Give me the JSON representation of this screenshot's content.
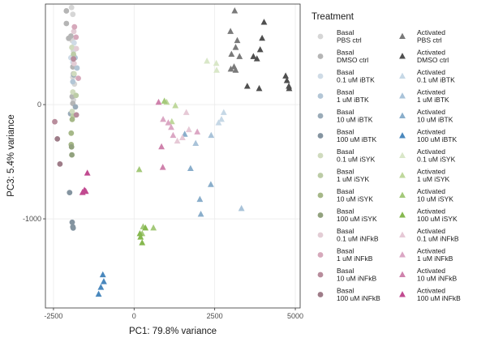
{
  "chart_data": {
    "type": "scatter",
    "xlabel": "PC1: 79.8% variance",
    "ylabel": "PC3: 5.4% variance",
    "xlim": [
      -2750,
      5150
    ],
    "ylim": [
      -1780,
      880
    ],
    "xticks": [
      -2500,
      0,
      2500,
      5000
    ],
    "xtick_labels": [
      "-2500",
      "0",
      "2500",
      "5000"
    ],
    "yticks": [
      -1000,
      0
    ],
    "ytick_labels": [
      "-1000",
      "0"
    ],
    "grid": true,
    "legend_title": "Treatment",
    "legend_position": "right",
    "series": [
      {
        "name": "Basal PBS ctrl",
        "label_lines": [
          "Basal",
          "PBS ctrl"
        ],
        "shape": "circle",
        "color": "#d6d6d6",
        "points": [
          [
            -1940,
            850
          ],
          [
            -1900,
            790
          ],
          [
            -1920,
            560
          ],
          [
            -1880,
            470
          ],
          [
            -1860,
            420
          ],
          [
            -1900,
            240
          ],
          [
            -1850,
            180
          ],
          [
            -1880,
            40
          ]
        ]
      },
      {
        "name": "Basal DMSO ctrl",
        "label_lines": [
          "Basal",
          "DMSO ctrl"
        ],
        "shape": "circle",
        "color": "#b5b5b5",
        "points": [
          [
            -2100,
            820
          ],
          [
            -2100,
            710
          ],
          [
            -2030,
            580
          ],
          [
            -1960,
            600
          ],
          [
            -1900,
            330
          ],
          [
            -1880,
            270
          ],
          [
            -1920,
            70
          ],
          [
            -1900,
            10
          ]
        ]
      },
      {
        "name": "Basal 0.1 uM iBTK",
        "label_lines": [
          "Basal",
          "0.1 uM iBTK"
        ],
        "shape": "circle",
        "color": "#cfdbe6",
        "points": [
          [
            -1860,
            540
          ],
          [
            -1820,
            490
          ],
          [
            -1960,
            410
          ],
          [
            -1900,
            370
          ]
        ]
      },
      {
        "name": "Basal 1 uM iBTK",
        "label_lines": [
          "Basal",
          "1 uM iBTK"
        ],
        "shape": "circle",
        "color": "#b3c6d6",
        "points": [
          [
            -1830,
            410
          ],
          [
            -1770,
            320
          ],
          [
            -1900,
            200
          ]
        ]
      },
      {
        "name": "Basal 10 uM iBTK",
        "label_lines": [
          "Basal",
          "10 uM iBTK"
        ],
        "shape": "circle",
        "color": "#9aabb8",
        "points": [
          [
            -1870,
            260
          ],
          [
            -1970,
            -80
          ],
          [
            -1820,
            -20
          ]
        ]
      },
      {
        "name": "Basal 100 uM iBTK",
        "label_lines": [
          "Basal",
          "100 uM iBTK"
        ],
        "shape": "circle",
        "color": "#8494a0",
        "points": [
          [
            -1920,
            -1030
          ],
          [
            -1900,
            -1070
          ],
          [
            -1890,
            -1080
          ],
          [
            -2000,
            -770
          ]
        ]
      },
      {
        "name": "Basal 0.1 uM iSYK",
        "label_lines": [
          "Basal",
          "0.1 uM iSYK"
        ],
        "shape": "circle",
        "color": "#d0dbbe",
        "points": [
          [
            -1930,
            500
          ],
          [
            -1860,
            270
          ],
          [
            -1900,
            110
          ],
          [
            -1920,
            -60
          ]
        ]
      },
      {
        "name": "Basal 1 uM iSYK",
        "label_lines": [
          "Basal",
          "1 uM iSYK"
        ],
        "shape": "circle",
        "color": "#bccca6",
        "points": [
          [
            -1880,
            440
          ],
          [
            -1800,
            80
          ],
          [
            -1890,
            -100
          ]
        ]
      },
      {
        "name": "Basal 10 uM iSYK",
        "label_lines": [
          "Basal",
          "10 uM iSYK"
        ],
        "shape": "circle",
        "color": "#a6b888",
        "points": [
          [
            -1920,
            -130
          ],
          [
            -1950,
            -250
          ],
          [
            -1950,
            -350
          ]
        ]
      },
      {
        "name": "Basal 100 uM iSYK",
        "label_lines": [
          "Basal",
          "100 uM iSYK"
        ],
        "shape": "circle",
        "color": "#92a27e",
        "points": [
          [
            -1940,
            -370
          ],
          [
            -1930,
            -440
          ]
        ]
      },
      {
        "name": "Basal 0.1 uM iNFkB",
        "label_lines": [
          "Basal",
          "0.1 uM iNFkB"
        ],
        "shape": "circle",
        "color": "#e3cdd5",
        "points": [
          [
            -1870,
            640
          ],
          [
            -1790,
            490
          ],
          [
            -1860,
            360
          ]
        ]
      },
      {
        "name": "Basal 1 uM iNFkB",
        "label_lines": [
          "Basal",
          "1 uM iNFkB"
        ],
        "shape": "circle",
        "color": "#d6a9bb",
        "points": [
          [
            -1850,
            680
          ],
          [
            -1800,
            590
          ],
          [
            -1730,
            230
          ]
        ]
      },
      {
        "name": "Basal 10 uM iNFkB",
        "label_lines": [
          "Basal",
          "10 uM iNFkB"
        ],
        "shape": "circle",
        "color": "#b88d9c",
        "points": [
          [
            -1880,
            400
          ],
          [
            -1790,
            -90
          ],
          [
            -2460,
            -150
          ]
        ]
      },
      {
        "name": "Basal 100 uM iNFkB",
        "label_lines": [
          "Basal",
          "100 uM iNFkB"
        ],
        "shape": "circle",
        "color": "#9e7c88",
        "points": [
          [
            -2380,
            -300
          ],
          [
            -2300,
            -520
          ]
        ]
      },
      {
        "name": "Activated PBS ctrl",
        "label_lines": [
          "Activated",
          "PBS ctrl"
        ],
        "shape": "triangle",
        "color": "#7a7a7a",
        "points": [
          [
            3120,
            820
          ],
          [
            2990,
            640
          ],
          [
            3200,
            560
          ],
          [
            3150,
            500
          ],
          [
            3020,
            440
          ],
          [
            3270,
            420
          ],
          [
            3100,
            330
          ],
          [
            3000,
            310
          ],
          [
            3150,
            300
          ]
        ]
      },
      {
        "name": "Activated DMSO ctrl",
        "label_lines": [
          "Activated",
          "DMSO ctrl"
        ],
        "shape": "triangle",
        "color": "#4f4f4f",
        "points": [
          [
            4030,
            720
          ],
          [
            3970,
            580
          ],
          [
            3910,
            480
          ],
          [
            3700,
            420
          ],
          [
            3810,
            400
          ],
          [
            4700,
            250
          ],
          [
            4740,
            210
          ],
          [
            4800,
            160
          ],
          [
            4810,
            140
          ],
          [
            3510,
            160
          ],
          [
            3880,
            140
          ]
        ]
      },
      {
        "name": "Activated 0.1 uM iBTK",
        "label_lines": [
          "Activated",
          "0.1 uM iBTK"
        ],
        "shape": "triangle",
        "color": "#c6d8e6",
        "points": [
          [
            2780,
            -70
          ],
          [
            2710,
            -130
          ],
          [
            2620,
            -160
          ]
        ]
      },
      {
        "name": "Activated 1 uM iBTK",
        "label_lines": [
          "Activated",
          "1 uM iBTK"
        ],
        "shape": "triangle",
        "color": "#a9c3d9",
        "points": [
          [
            2390,
            -270
          ],
          [
            1910,
            -340
          ],
          [
            3330,
            -910
          ]
        ]
      },
      {
        "name": "Activated 10 uM iBTK",
        "label_lines": [
          "Activated",
          "10 uM iBTK"
        ],
        "shape": "triangle",
        "color": "#8aaecb",
        "points": [
          [
            1570,
            -260
          ],
          [
            1750,
            -560
          ],
          [
            2040,
            -830
          ],
          [
            2070,
            -960
          ],
          [
            2380,
            -700
          ]
        ]
      },
      {
        "name": "Activated 100 uM iBTK",
        "label_lines": [
          "Activated",
          "100 uM iBTK"
        ],
        "shape": "triangle",
        "color": "#4a88bd",
        "points": [
          [
            -970,
            -1490
          ],
          [
            -940,
            -1550
          ],
          [
            -1030,
            -1600
          ],
          [
            -1100,
            -1660
          ]
        ]
      },
      {
        "name": "Activated 0.1 uM iSYK",
        "label_lines": [
          "Activated",
          "0.1 uM iSYK"
        ],
        "shape": "triangle",
        "color": "#d9e7c8",
        "points": [
          [
            2260,
            380
          ],
          [
            2550,
            360
          ],
          [
            2560,
            300
          ]
        ]
      },
      {
        "name": "Activated 1 uM iSYK",
        "label_lines": [
          "Activated",
          "1 uM iSYK"
        ],
        "shape": "triangle",
        "color": "#bfd89c",
        "points": [
          [
            1280,
            -10
          ],
          [
            1170,
            -150
          ],
          [
            1010,
            20
          ]
        ]
      },
      {
        "name": "Activated 10 uM iSYK",
        "label_lines": [
          "Activated",
          "10 uM iSYK"
        ],
        "shape": "triangle",
        "color": "#a4c97a",
        "points": [
          [
            940,
            30
          ],
          [
            160,
            -570
          ],
          [
            600,
            -1080
          ],
          [
            280,
            -1070
          ],
          [
            250,
            -1130
          ]
        ]
      },
      {
        "name": "Activated 100 uM iSYK",
        "label_lines": [
          "Activated",
          "100 uM iSYK"
        ],
        "shape": "triangle",
        "color": "#86b84f",
        "points": [
          [
            350,
            -1080
          ],
          [
            200,
            -1160
          ],
          [
            250,
            -1210
          ],
          [
            180,
            -1130
          ]
        ]
      },
      {
        "name": "Activated 0.1 uM iNFkB",
        "label_lines": [
          "Activated",
          "0.1 uM iNFkB"
        ],
        "shape": "triangle",
        "color": "#e6c9d6",
        "points": [
          [
            1620,
            -70
          ],
          [
            1340,
            -320
          ],
          [
            1500,
            -290
          ],
          [
            1700,
            -220
          ]
        ]
      },
      {
        "name": "Activated 1 uM iNFkB",
        "label_lines": [
          "Activated",
          "1 uM iNFkB"
        ],
        "shape": "triangle",
        "color": "#dba7c4",
        "points": [
          [
            1060,
            -160
          ],
          [
            900,
            -130
          ],
          [
            1210,
            -270
          ],
          [
            1960,
            -240
          ],
          [
            1150,
            -200
          ]
        ]
      },
      {
        "name": "Activated 10 uM iNFkB",
        "label_lines": [
          "Activated",
          "10 uM iNFkB"
        ],
        "shape": "triangle",
        "color": "#cf82ac",
        "points": [
          [
            760,
            20
          ],
          [
            850,
            -370
          ],
          [
            890,
            -550
          ]
        ]
      },
      {
        "name": "Activated 100 uM iNFkB",
        "label_lines": [
          "Activated",
          "100 uM iNFkB"
        ],
        "shape": "triangle",
        "color": "#c14a90",
        "points": [
          [
            -1450,
            -600
          ],
          [
            -1540,
            -750
          ],
          [
            -1600,
            -770
          ],
          [
            -1500,
            -760
          ]
        ]
      }
    ]
  }
}
